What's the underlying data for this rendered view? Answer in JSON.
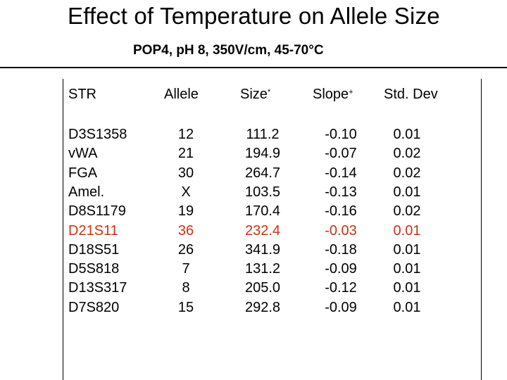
{
  "title": "Effect of Temperature on Allele Size",
  "subtitle": "POP4, pH 8, 350V/cm, 45-70°C",
  "headers": {
    "str": "STR",
    "allele": "Allele",
    "size": "Size",
    "size_mark": "*",
    "slope": "Slope",
    "slope_mark": "+",
    "std_dev": "Std. Dev"
  },
  "highlight_color": "#cc3311",
  "rows": [
    {
      "str": "D3S1358",
      "allele": "12",
      "size": "111.2",
      "slope": "-0.10",
      "std_dev": "0.01",
      "highlight": false
    },
    {
      "str": "vWA",
      "allele": "21",
      "size": "194.9",
      "slope": "-0.07",
      "std_dev": "0.02",
      "highlight": false
    },
    {
      "str": "FGA",
      "allele": "30",
      "size": "264.7",
      "slope": "-0.14",
      "std_dev": "0.02",
      "highlight": false
    },
    {
      "str": "Amel.",
      "allele": "X",
      "size": "103.5",
      "slope": "-0.13",
      "std_dev": "0.01",
      "highlight": false
    },
    {
      "str": "D8S1179",
      "allele": "19",
      "size": "170.4",
      "slope": "-0.16",
      "std_dev": "0.02",
      "highlight": false
    },
    {
      "str": "D21S11",
      "allele": "36",
      "size": "232.4",
      "slope": "-0.03",
      "std_dev": "0.01",
      "highlight": true
    },
    {
      "str": "D18S51",
      "allele": "26",
      "size": "341.9",
      "slope": "-0.18",
      "std_dev": "0.01",
      "highlight": false
    },
    {
      "str": "D5S818",
      "allele": "7",
      "size": "131.2",
      "slope": "-0.09",
      "std_dev": "0.01",
      "highlight": false
    },
    {
      "str": "D13S317",
      "allele": "8",
      "size": "205.0",
      "slope": "-0.12",
      "std_dev": "0.01",
      "highlight": false
    },
    {
      "str": "D7S820",
      "allele": "15",
      "size": "292.8",
      "slope": "-0.09",
      "std_dev": "0.01",
      "highlight": false
    }
  ]
}
